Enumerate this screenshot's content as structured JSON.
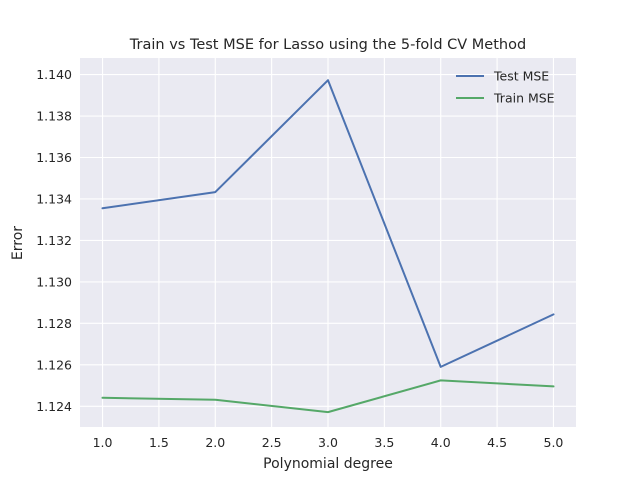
{
  "chart_data": {
    "type": "line",
    "title": "Train vs Test MSE for Lasso using the 5-fold CV Method",
    "xlabel": "Polynomial degree",
    "ylabel": "Error",
    "x": [
      1.0,
      2.0,
      3.0,
      4.0,
      5.0
    ],
    "xlim": [
      0.8,
      5.2
    ],
    "ylim": [
      1.123,
      1.1408
    ],
    "xticks": [
      1.0,
      1.5,
      2.0,
      2.5,
      3.0,
      3.5,
      4.0,
      4.5,
      5.0
    ],
    "xtick_labels": [
      "1.0",
      "1.5",
      "2.0",
      "2.5",
      "3.0",
      "3.5",
      "4.0",
      "4.5",
      "5.0"
    ],
    "yticks": [
      1.124,
      1.126,
      1.128,
      1.13,
      1.132,
      1.134,
      1.136,
      1.138,
      1.14
    ],
    "ytick_labels": [
      "1.124",
      "1.126",
      "1.128",
      "1.130",
      "1.132",
      "1.134",
      "1.136",
      "1.138",
      "1.140"
    ],
    "series": [
      {
        "name": "Test MSE",
        "color": "#4c72b0",
        "values": [
          1.13355,
          1.13433,
          1.13973,
          1.1259,
          1.12843
        ]
      },
      {
        "name": "Train MSE",
        "color": "#55a868",
        "values": [
          1.12441,
          1.12431,
          1.12372,
          1.12525,
          1.12496
        ]
      }
    ],
    "grid": true,
    "legend": "top-right",
    "background": "#eaeaf2",
    "gridline_color": "#ffffff"
  }
}
